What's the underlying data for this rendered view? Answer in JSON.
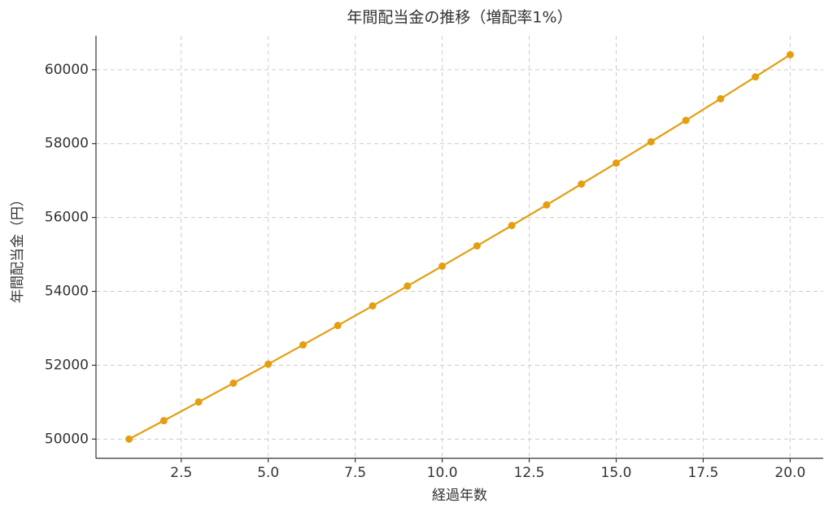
{
  "chart_data": {
    "type": "line",
    "title": "年間配当金の推移（増配率1%）",
    "x_label": "経過年数",
    "y_label": "年間配当金（円）",
    "x": [
      1,
      2,
      3,
      4,
      5,
      6,
      7,
      8,
      9,
      10,
      11,
      12,
      13,
      14,
      15,
      16,
      17,
      18,
      19,
      20
    ],
    "series": [
      {
        "name": "年間配当金",
        "color": "#e49e0f",
        "values": [
          50000,
          50500,
          51005,
          51515,
          52030,
          52551,
          53076,
          53607,
          54143,
          54684,
          55231,
          55783,
          56341,
          56905,
          57474,
          58049,
          58629,
          59215,
          59807,
          60406
        ]
      }
    ],
    "xlim": [
      0.05,
      20.95
    ],
    "ylim": [
      49480,
      60920
    ],
    "xticks": [
      2.5,
      {
        "value": 5,
        "label": "5.0"
      },
      7.5,
      {
        "value": 10,
        "label": "10.0"
      },
      12.5,
      {
        "value": 15,
        "label": "15.0"
      },
      17.5,
      {
        "value": 20,
        "label": "20.0"
      }
    ],
    "yticks": [
      50000,
      52000,
      54000,
      56000,
      58000,
      60000
    ],
    "grid": true
  }
}
